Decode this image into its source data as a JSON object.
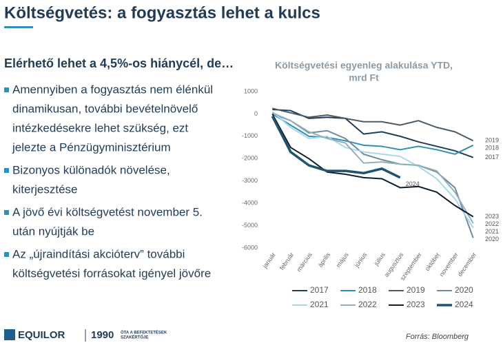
{
  "header": {
    "title": "Költségvetés: a fogyasztás lehet a kulcs"
  },
  "subtitle": "Elérhető lehet a 4,5%-os hiánycél, de…",
  "bullets": [
    [
      "Amennyiben a fogyasztás nem élénkül",
      "dinamikusan, további bevételnövelő",
      "intézkedésekre lehet szükség, ezt",
      "jelezte a Pénzügyminisztérium"
    ],
    [
      "Bizonyos különadók növelése,",
      "kiterjesztése"
    ],
    [
      "A jövő évi költségvetést november 5.",
      "után nyújtják be"
    ],
    [
      "Az „újraindítási akcióterv” további",
      "költségvetési forrásokat igényel jövőre"
    ]
  ],
  "footer": {
    "brand": "EQUILOR",
    "year": "1990",
    "tagline": [
      "ÓTA A BEFEKTETÉSEK",
      "SZAKÉRTŐJE"
    ],
    "source": "Forrás: Bloomberg"
  },
  "chart_data": {
    "type": "line",
    "title": [
      "Költségvetési egyenleg alakulása YTD,",
      "mrd Ft"
    ],
    "categories": [
      "január",
      "február",
      "március",
      "április",
      "május",
      "június",
      "július",
      "augusztus",
      "szeptember",
      "október",
      "november",
      "december"
    ],
    "ylim": [
      -6000,
      1000
    ],
    "yticks": [
      -6000,
      -5000,
      -4000,
      -3000,
      -2000,
      -1000,
      0,
      1000
    ],
    "series": [
      {
        "name": "2017",
        "color": "#1f3b57",
        "values": [
          200,
          150,
          -200,
          -150,
          -200,
          -900,
          -800,
          -1000,
          -1250,
          -1450,
          -1650,
          -1950
        ]
      },
      {
        "name": "2018",
        "color": "#2e8fb8",
        "values": [
          0,
          -500,
          -1000,
          -1050,
          -1200,
          -1400,
          -1450,
          -1600,
          -1450,
          -1600,
          -1800,
          -1400
        ]
      },
      {
        "name": "2019",
        "color": "#4a5a66",
        "values": [
          250,
          50,
          -150,
          -50,
          -200,
          -350,
          -350,
          -500,
          -300,
          -600,
          -800,
          -1200
        ]
      },
      {
        "name": "2020",
        "color": "#6f8a9c",
        "values": [
          0,
          -300,
          -850,
          -750,
          -1100,
          -1800,
          -2050,
          -2250,
          -2300,
          -2600,
          -3300,
          -5550
        ]
      },
      {
        "name": "2021",
        "color": "#a9d6ea",
        "values": [
          100,
          -600,
          -1100,
          -1000,
          -1500,
          -1700,
          -1800,
          -1900,
          -2350,
          -2900,
          -3800,
          -5100
        ]
      },
      {
        "name": "2022",
        "color": "#8fb0be",
        "values": [
          50,
          -300,
          -800,
          -1100,
          -1300,
          -2200,
          -2150,
          -2250,
          -2300,
          -2550,
          -3500,
          -4900
        ]
      },
      {
        "name": "2023",
        "color": "#0e1f2e",
        "values": [
          0,
          -1500,
          -2000,
          -2600,
          -2700,
          -2850,
          -2900,
          -3300,
          -3250,
          -3500,
          -4100,
          -4600
        ]
      },
      {
        "name": "2024",
        "color": "#1d5570",
        "values": [
          -100,
          -1700,
          -2300,
          -2550,
          -2550,
          -2650,
          -2450,
          -2850,
          null,
          null,
          null,
          null
        ]
      }
    ]
  }
}
